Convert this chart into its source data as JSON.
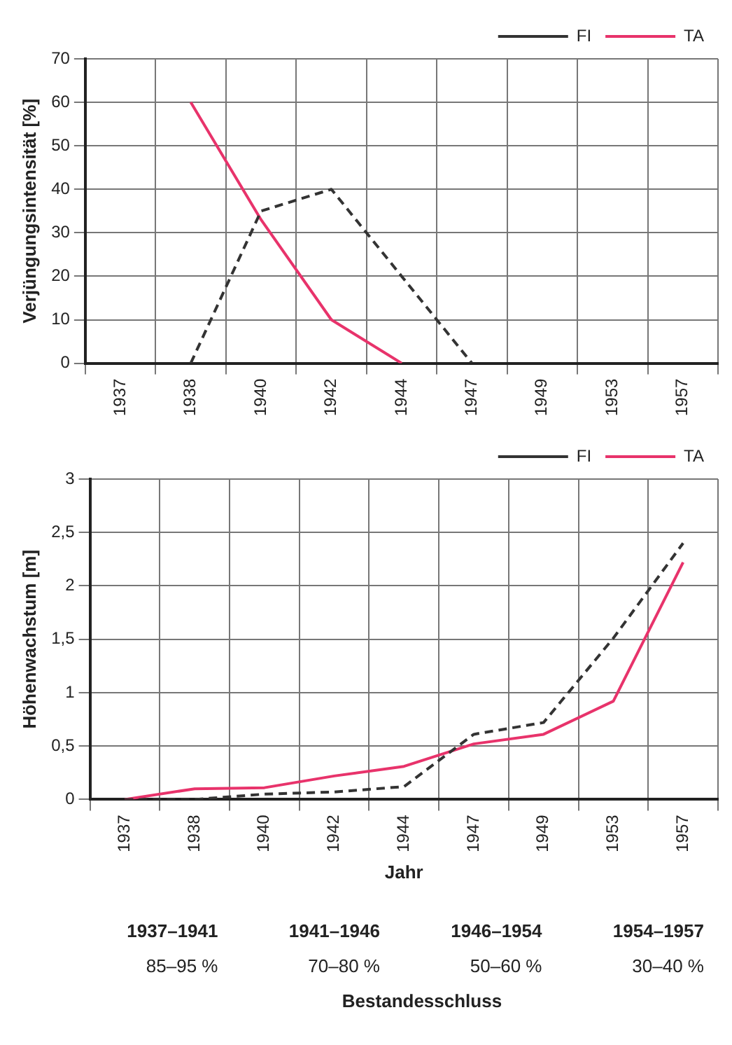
{
  "chart_data": [
    {
      "type": "line",
      "ylabel": "Verjüngungsintensität [%]",
      "categories": [
        "1937",
        "1938",
        "1940",
        "1942",
        "1944",
        "1947",
        "1949",
        "1953",
        "1957"
      ],
      "series": [
        {
          "name": "FI",
          "color": "#333333",
          "line_style": "dashed",
          "values": [
            null,
            0,
            35,
            40,
            20,
            0,
            null,
            null,
            null
          ]
        },
        {
          "name": "TA",
          "color": "#e8336b",
          "line_style": "solid",
          "values": [
            null,
            60,
            33,
            10,
            0,
            null,
            null,
            null,
            null
          ]
        }
      ],
      "ylim": [
        0,
        70
      ],
      "yticks": [
        0,
        10,
        20,
        30,
        40,
        50,
        60,
        70
      ],
      "grid": true,
      "legend": "top right",
      "marker": "none"
    },
    {
      "type": "line",
      "xlabel": "Jahr",
      "ylabel": "Höhenwachstum [m]",
      "categories": [
        "1937",
        "1938",
        "1940",
        "1942",
        "1944",
        "1947",
        "1949",
        "1953",
        "1957"
      ],
      "series": [
        {
          "name": "FI",
          "color": "#333333",
          "line_style": "dashed",
          "values": [
            0,
            0,
            0.05,
            0.07,
            0.12,
            0.61,
            0.72,
            1.51,
            2.4
          ]
        },
        {
          "name": "TA",
          "color": "#e8336b",
          "line_style": "solid",
          "values": [
            0,
            0.1,
            0.11,
            0.22,
            0.31,
            0.52,
            0.61,
            0.92,
            2.22
          ]
        }
      ],
      "ylim": [
        0,
        3
      ],
      "yticks": [
        0,
        {
          "value": 0.5,
          "label": "0,5"
        },
        1,
        {
          "value": 1.5,
          "label": "1,5"
        },
        2,
        {
          "value": 2.5,
          "label": "2,5"
        },
        3
      ],
      "grid": true,
      "legend": "top right",
      "marker": "none"
    },
    {
      "type": "other",
      "title": "Bestandesschluss",
      "annotations": [
        "1937–1941",
        "1941–1946",
        "1946–1954",
        "1954–1957",
        "85–95 %",
        "70–80 %",
        "50–60 %",
        "30–40 %"
      ]
    }
  ]
}
